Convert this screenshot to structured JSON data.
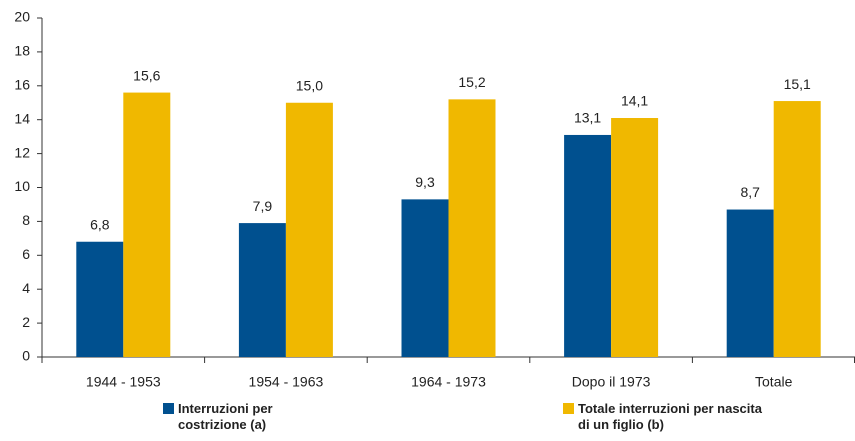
{
  "chart_data": {
    "type": "bar",
    "categories": [
      "1944 - 1953",
      "1954 - 1963",
      "1964 - 1973",
      "Dopo il 1973",
      "Totale"
    ],
    "series": [
      {
        "name": "Interruzioni per costrizione (a)",
        "color": "#00508f",
        "values": [
          6.8,
          7.9,
          9.3,
          13.1,
          8.7
        ],
        "value_labels": [
          "6,8",
          "7,9",
          "9,3",
          "13,1",
          "8,7"
        ]
      },
      {
        "name": "Totale interruzioni per nascita di un figlio (b)",
        "color": "#f0b800",
        "values": [
          15.6,
          15.0,
          15.2,
          14.1,
          15.1
        ],
        "value_labels": [
          "15,6",
          "15,0",
          "15,2",
          "14,1",
          "15,1"
        ]
      }
    ],
    "ylim": [
      0,
      20
    ],
    "yticks": [
      0,
      2,
      4,
      6,
      8,
      10,
      12,
      14,
      16,
      18,
      20
    ],
    "grid": false
  }
}
